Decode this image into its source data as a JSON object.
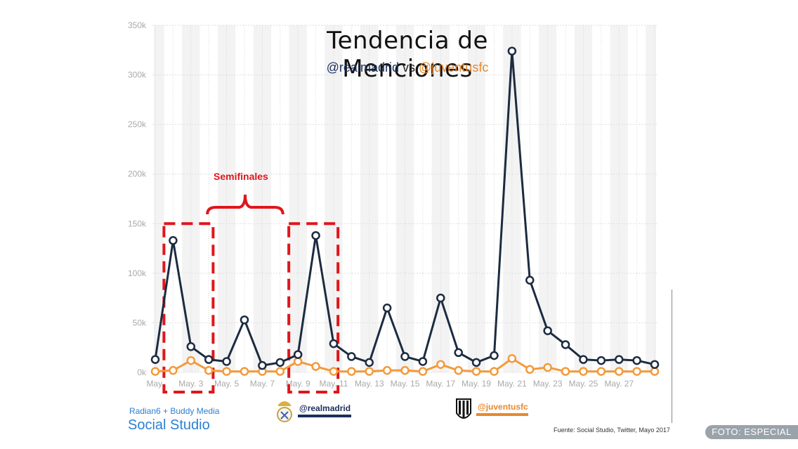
{
  "chart_data": {
    "type": "line",
    "title": "Tendencia de Menciones",
    "subtitle_parts": [
      "@realmadrid",
      "vs",
      "@juventusfc"
    ],
    "ylim": [
      0,
      350000
    ],
    "yticks": [
      0,
      50000,
      100000,
      150000,
      200000,
      250000,
      300000,
      350000
    ],
    "ytick_labels": [
      "0k",
      "50k",
      "100k",
      "150k",
      "200k",
      "250k",
      "300k",
      "350k"
    ],
    "x_day_start": 1,
    "x_day_end": 29,
    "xtick_labels": [
      "May.",
      "May. 3",
      "May. 5",
      "May. 7",
      "May. 9",
      "May. 11",
      "May. 13",
      "May. 15",
      "May. 17",
      "May. 19",
      "May. 21",
      "May. 23",
      "May. 25",
      "May. 27"
    ],
    "series": [
      {
        "name": "@realmadrid",
        "color": "#1c2b40",
        "x": [
          1,
          2,
          3,
          4,
          5,
          6,
          7,
          8,
          9,
          10,
          11,
          12,
          13,
          14,
          15,
          16,
          17,
          18,
          19,
          20,
          21,
          22,
          23,
          24,
          25,
          26,
          27,
          28,
          29
        ],
        "values": [
          13000,
          133000,
          26000,
          13000,
          11000,
          53000,
          7000,
          10000,
          18000,
          138000,
          29000,
          16000,
          10000,
          65000,
          16000,
          11000,
          75000,
          20000,
          10000,
          17000,
          324000,
          93000,
          42000,
          28000,
          13000,
          12000,
          13000,
          12000,
          8000
        ]
      },
      {
        "name": "@juventusfc",
        "color": "#f39a3b",
        "x": [
          1,
          2,
          3,
          4,
          5,
          6,
          7,
          8,
          9,
          10,
          11,
          12,
          13,
          14,
          15,
          16,
          17,
          18,
          19,
          20,
          21,
          22,
          23,
          24,
          25,
          26,
          27,
          28,
          29
        ],
        "values": [
          1000,
          2000,
          12000,
          2000,
          1000,
          1000,
          1000,
          1000,
          11000,
          6000,
          1000,
          1000,
          1000,
          2000,
          2000,
          1000,
          8000,
          2000,
          1000,
          1000,
          14000,
          3000,
          5000,
          1000,
          1000,
          1000,
          1000,
          1000,
          1000
        ]
      }
    ],
    "annotation": "Semifinales",
    "grid": true,
    "legend": "bottom"
  },
  "branding": {
    "line1": "Radian6 + Buddy Media",
    "line2": "Social Studio"
  },
  "legend": {
    "realmadrid": "@realmadrid",
    "juventus": "@juventusfc"
  },
  "source": "Fuente: Social Studio, Twitter, Mayo 2017",
  "credit": "FOTO: ESPECIAL",
  "colors": {
    "realmadrid": "#1c2b40",
    "juventus": "#f39a3b",
    "highlight": "#e0161b"
  }
}
